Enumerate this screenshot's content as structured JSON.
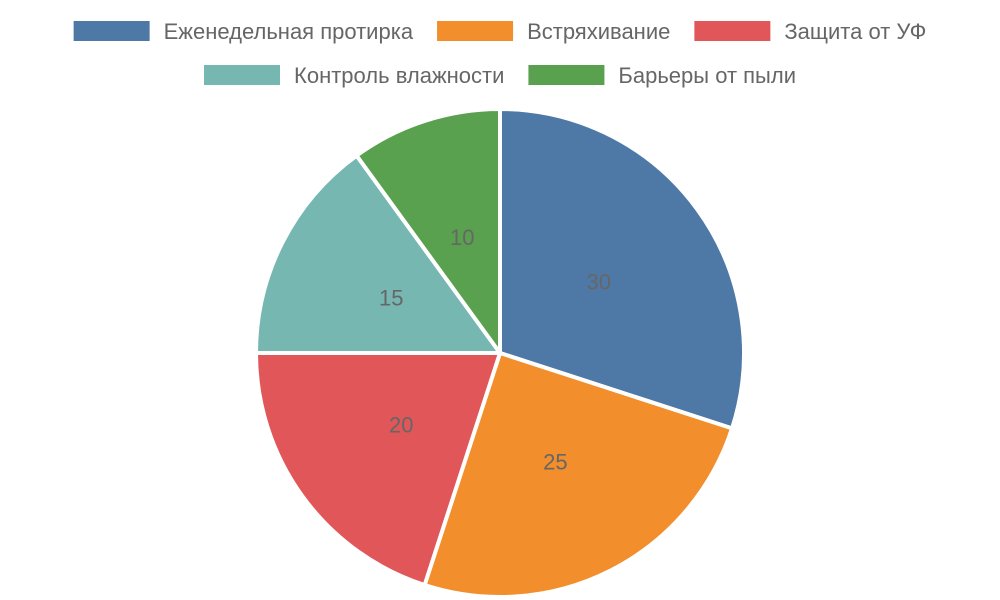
{
  "chart_data": {
    "type": "pie",
    "categories": [
      "Еженедельная протирка",
      "Встряхивание",
      "Защита от УФ",
      "Контроль влажности",
      "Барьеры от пыли"
    ],
    "values": [
      30,
      25,
      20,
      15,
      10
    ],
    "colors": [
      "#4e79a7",
      "#f28e2b",
      "#e15759",
      "#76b7b2",
      "#59a14f"
    ],
    "title": "",
    "legend_position": "top",
    "show_value_labels": true
  }
}
